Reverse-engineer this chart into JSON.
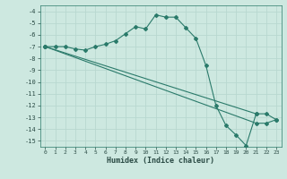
{
  "title": "",
  "xlabel": "Humidex (Indice chaleur)",
  "ylabel": "",
  "background_color": "#cde8e0",
  "grid_color": "#b8d8d0",
  "line_color": "#2a7a6a",
  "xlim": [
    -0.5,
    23.5
  ],
  "ylim": [
    -15.5,
    -3.5
  ],
  "yticks": [
    -4,
    -5,
    -6,
    -7,
    -8,
    -9,
    -10,
    -11,
    -12,
    -13,
    -14,
    -15
  ],
  "xticks": [
    0,
    1,
    2,
    3,
    4,
    5,
    6,
    7,
    8,
    9,
    10,
    11,
    12,
    13,
    14,
    15,
    16,
    17,
    18,
    19,
    20,
    21,
    22,
    23
  ],
  "series": [
    {
      "x": [
        0,
        1,
        2,
        3,
        4,
        5,
        6,
        7,
        8,
        9,
        10,
        11,
        12,
        13,
        14,
        15,
        16,
        17,
        18,
        19,
        20,
        21
      ],
      "y": [
        -7,
        -7,
        -7,
        -7.2,
        -7.3,
        -7.0,
        -6.8,
        -6.5,
        -5.9,
        -5.3,
        -5.5,
        -4.3,
        -4.5,
        -4.5,
        -5.4,
        -6.3,
        -8.6,
        -12.0,
        -13.7,
        -14.5,
        -15.4,
        -12.7
      ]
    },
    {
      "x": [
        0,
        21,
        22,
        23
      ],
      "y": [
        -7,
        -12.7,
        -12.7,
        -13.2
      ]
    },
    {
      "x": [
        0,
        21,
        22,
        23
      ],
      "y": [
        -7,
        -13.5,
        -13.5,
        -13.2
      ]
    }
  ]
}
